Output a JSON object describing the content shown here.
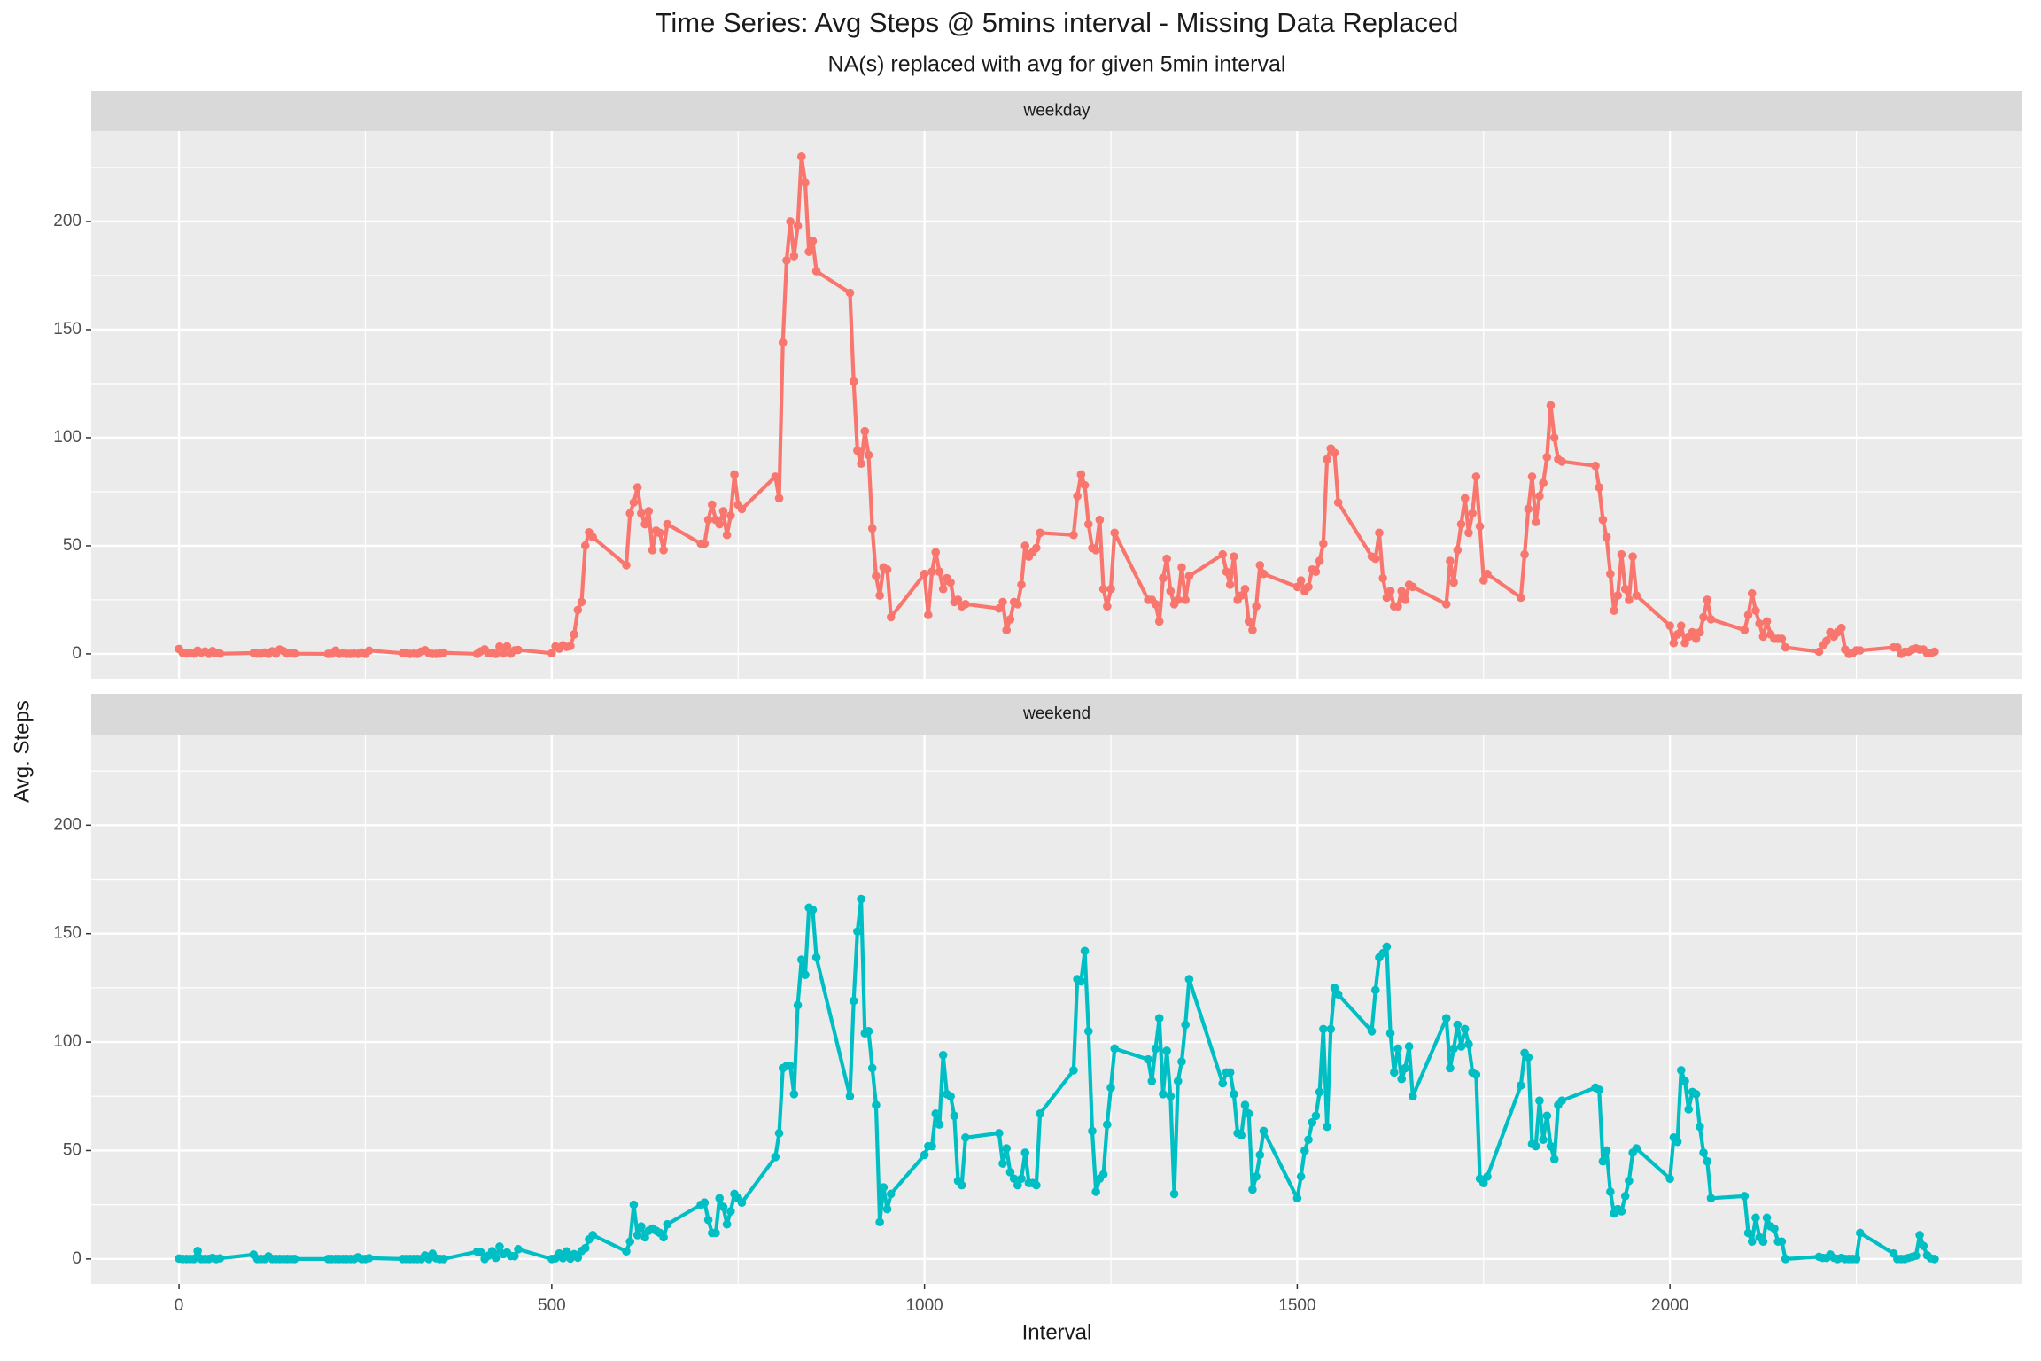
{
  "chart_data": [
    {
      "type": "line",
      "title": "Time Series: Avg Steps @ 5mins interval - Missing Data Replaced",
      "subtitle": "NA(s) replaced with avg for given 5min interval",
      "y_label": "Avg. Steps",
      "strip": "weekday",
      "color": "#F8766D",
      "grid": true,
      "xlim": [
        -117.75,
        2472.75
      ],
      "xticks": [
        0,
        500,
        1000,
        1500,
        2000
      ],
      "xminor": [
        250,
        750,
        1250,
        1750,
        2250
      ],
      "ylim": [
        -11.5,
        241.8
      ],
      "yticks": [
        0,
        50,
        100,
        150,
        200
      ],
      "yminor": [
        25,
        75,
        125,
        175,
        225
      ],
      "x": [
        0,
        5,
        10,
        15,
        20,
        25,
        30,
        35,
        40,
        45,
        50,
        55,
        100,
        105,
        110,
        115,
        120,
        125,
        130,
        135,
        140,
        145,
        150,
        155,
        200,
        205,
        210,
        215,
        220,
        225,
        230,
        235,
        240,
        245,
        250,
        255,
        300,
        305,
        310,
        315,
        320,
        325,
        330,
        335,
        340,
        345,
        350,
        355,
        400,
        405,
        410,
        415,
        420,
        425,
        430,
        435,
        440,
        445,
        450,
        455,
        500,
        505,
        510,
        515,
        520,
        525,
        530,
        535,
        540,
        545,
        550,
        555,
        600,
        605,
        610,
        615,
        620,
        625,
        630,
        635,
        640,
        645,
        650,
        655,
        700,
        705,
        710,
        715,
        720,
        725,
        730,
        735,
        740,
        745,
        750,
        755,
        800,
        805,
        810,
        815,
        820,
        825,
        830,
        835,
        840,
        845,
        850,
        855,
        900,
        905,
        910,
        915,
        920,
        925,
        930,
        935,
        940,
        945,
        950,
        955,
        1000,
        1005,
        1010,
        1015,
        1020,
        1025,
        1030,
        1035,
        1040,
        1045,
        1050,
        1055,
        1100,
        1105,
        1110,
        1115,
        1120,
        1125,
        1130,
        1135,
        1140,
        1145,
        1150,
        1155,
        1200,
        1205,
        1210,
        1215,
        1220,
        1225,
        1230,
        1235,
        1240,
        1245,
        1250,
        1255,
        1300,
        1305,
        1310,
        1315,
        1320,
        1325,
        1330,
        1335,
        1340,
        1345,
        1350,
        1355,
        1400,
        1405,
        1410,
        1415,
        1420,
        1425,
        1430,
        1435,
        1440,
        1445,
        1450,
        1455,
        1500,
        1505,
        1510,
        1515,
        1520,
        1525,
        1530,
        1535,
        1540,
        1545,
        1550,
        1555,
        1600,
        1605,
        1610,
        1615,
        1620,
        1625,
        1630,
        1635,
        1640,
        1645,
        1650,
        1655,
        1700,
        1705,
        1710,
        1715,
        1720,
        1725,
        1730,
        1735,
        1740,
        1745,
        1750,
        1755,
        1800,
        1805,
        1810,
        1815,
        1820,
        1825,
        1830,
        1835,
        1840,
        1845,
        1850,
        1855,
        1900,
        1905,
        1910,
        1915,
        1920,
        1925,
        1930,
        1935,
        1940,
        1945,
        1950,
        1955,
        2000,
        2005,
        2010,
        2015,
        2020,
        2025,
        2030,
        2035,
        2040,
        2045,
        2050,
        2055,
        2100,
        2105,
        2110,
        2115,
        2120,
        2125,
        2130,
        2135,
        2140,
        2145,
        2150,
        2155,
        2200,
        2205,
        2210,
        2215,
        2220,
        2225,
        2230,
        2235,
        2240,
        2245,
        2250,
        2255,
        2300,
        2305,
        2310,
        2315,
        2320,
        2325,
        2330,
        2335,
        2340,
        2345,
        2350,
        2355
      ],
      "values": [
        2.25,
        0.45,
        0.17,
        0.2,
        0.09,
        1.5,
        0.6,
        1.1,
        0,
        1.3,
        0.3,
        0.1,
        0.4,
        0.1,
        0.1,
        0.6,
        0,
        1.2,
        0.1,
        2.0,
        1.3,
        0.2,
        0.3,
        0.1,
        0,
        0.1,
        1.5,
        0,
        0.2,
        0,
        0,
        0.1,
        0,
        0.6,
        0,
        1.5,
        0.3,
        0.2,
        0,
        0.1,
        0,
        1.1,
        1.7,
        0.4,
        0,
        0,
        0.1,
        0.5,
        0,
        1.2,
        2.1,
        0.3,
        0.5,
        0,
        3.4,
        0.2,
        3.5,
        0.1,
        1.6,
        1.8,
        0.3,
        3.5,
        2.4,
        4.0,
        3.2,
        3.6,
        9.0,
        20.3,
        24.0,
        50.1,
        56.2,
        54,
        41,
        65,
        70,
        77,
        65,
        60,
        66,
        48,
        57,
        56,
        48,
        60,
        51,
        51,
        62,
        69,
        62,
        60,
        66,
        55,
        64,
        83,
        69,
        67,
        82,
        72,
        144,
        182,
        200,
        184,
        198,
        230,
        218,
        186,
        191,
        177,
        167,
        126,
        94,
        88,
        103,
        92,
        58,
        36,
        27,
        40,
        39,
        17,
        37,
        18,
        38,
        47,
        38,
        30,
        35,
        33,
        24,
        25,
        22,
        23,
        21,
        24,
        11,
        16,
        24,
        23,
        32,
        50,
        45,
        47,
        49,
        56,
        55,
        73,
        83,
        78,
        60,
        49,
        48,
        62,
        30,
        22,
        30,
        56,
        25,
        25,
        23,
        15,
        35,
        44,
        29,
        23,
        25,
        40,
        25,
        36,
        46,
        38,
        32,
        45,
        25,
        27,
        30,
        15,
        11,
        22,
        41,
        37,
        31,
        34,
        29,
        31,
        39,
        38,
        43,
        51,
        90,
        95,
        93,
        70,
        45,
        44,
        56,
        35,
        26,
        29,
        22,
        22,
        29,
        25,
        32,
        31,
        23,
        43,
        33,
        48,
        60,
        72,
        56,
        65,
        82,
        59,
        34,
        37,
        26,
        46,
        67,
        82,
        61,
        73,
        79,
        91,
        115,
        100,
        90,
        89,
        87,
        77,
        62,
        54,
        37,
        20,
        27,
        46,
        30,
        25,
        45,
        27,
        13,
        5,
        9,
        13,
        5,
        8,
        10,
        7,
        10,
        17,
        25,
        16,
        11,
        18,
        28,
        20,
        14,
        8,
        15,
        9,
        7,
        7,
        7,
        3,
        1,
        4,
        6,
        10,
        8,
        10,
        12,
        2,
        0,
        0.3,
        1.6,
        1.6,
        3,
        3,
        0,
        1,
        1,
        2,
        2.5,
        2,
        2,
        0.3,
        0.3,
        1
      ]
    },
    {
      "type": "line",
      "strip": "weekend",
      "x_label": "Interval",
      "color": "#00BFC4",
      "grid": true,
      "xlim": [
        -117.75,
        2472.75
      ],
      "xticks": [
        0,
        500,
        1000,
        1500,
        2000
      ],
      "xminor": [
        250,
        750,
        1250,
        1750,
        2250
      ],
      "ylim": [
        -11.5,
        241.8
      ],
      "yticks": [
        0,
        50,
        100,
        150,
        200
      ],
      "yminor": [
        25,
        75,
        125,
        175,
        225
      ],
      "x": [
        0,
        5,
        10,
        15,
        20,
        25,
        30,
        35,
        40,
        45,
        50,
        55,
        100,
        105,
        110,
        115,
        120,
        125,
        130,
        135,
        140,
        145,
        150,
        155,
        200,
        205,
        210,
        215,
        220,
        225,
        230,
        235,
        240,
        245,
        250,
        255,
        300,
        305,
        310,
        315,
        320,
        325,
        330,
        335,
        340,
        345,
        350,
        355,
        400,
        405,
        410,
        415,
        420,
        425,
        430,
        435,
        440,
        445,
        450,
        455,
        500,
        505,
        510,
        515,
        520,
        525,
        530,
        535,
        540,
        545,
        550,
        555,
        600,
        605,
        610,
        615,
        620,
        625,
        630,
        635,
        640,
        645,
        650,
        655,
        700,
        705,
        710,
        715,
        720,
        725,
        730,
        735,
        740,
        745,
        750,
        755,
        800,
        805,
        810,
        815,
        820,
        825,
        830,
        835,
        840,
        845,
        850,
        855,
        900,
        905,
        910,
        915,
        920,
        925,
        930,
        935,
        940,
        945,
        950,
        955,
        1000,
        1005,
        1010,
        1015,
        1020,
        1025,
        1030,
        1035,
        1040,
        1045,
        1050,
        1055,
        1100,
        1105,
        1110,
        1115,
        1120,
        1125,
        1130,
        1135,
        1140,
        1145,
        1150,
        1155,
        1200,
        1205,
        1210,
        1215,
        1220,
        1225,
        1230,
        1235,
        1240,
        1245,
        1250,
        1255,
        1300,
        1305,
        1310,
        1315,
        1320,
        1325,
        1330,
        1335,
        1340,
        1345,
        1350,
        1355,
        1400,
        1405,
        1410,
        1415,
        1420,
        1425,
        1430,
        1435,
        1440,
        1445,
        1450,
        1455,
        1500,
        1505,
        1510,
        1515,
        1520,
        1525,
        1530,
        1535,
        1540,
        1545,
        1550,
        1555,
        1600,
        1605,
        1610,
        1615,
        1620,
        1625,
        1630,
        1635,
        1640,
        1645,
        1650,
        1655,
        1700,
        1705,
        1710,
        1715,
        1720,
        1725,
        1730,
        1735,
        1740,
        1745,
        1750,
        1755,
        1800,
        1805,
        1810,
        1815,
        1820,
        1825,
        1830,
        1835,
        1840,
        1845,
        1850,
        1855,
        1900,
        1905,
        1910,
        1915,
        1920,
        1925,
        1930,
        1935,
        1940,
        1945,
        1950,
        1955,
        2000,
        2005,
        2010,
        2015,
        2020,
        2025,
        2030,
        2035,
        2040,
        2045,
        2050,
        2055,
        2100,
        2105,
        2110,
        2115,
        2120,
        2125,
        2130,
        2135,
        2140,
        2145,
        2150,
        2155,
        2200,
        2205,
        2210,
        2215,
        2220,
        2225,
        2230,
        2235,
        2240,
        2245,
        2250,
        2255,
        2300,
        2305,
        2310,
        2315,
        2320,
        2325,
        2330,
        2335,
        2340,
        2345,
        2350,
        2355
      ],
      "values": [
        0.2,
        0,
        0,
        0,
        0,
        3.7,
        0,
        0,
        0,
        0.5,
        0,
        0.3,
        2.0,
        0,
        0,
        0,
        1.2,
        0,
        0,
        0,
        0,
        0,
        0,
        0,
        0,
        0,
        0,
        0,
        0,
        0,
        0,
        0,
        0.8,
        0,
        0,
        0.4,
        0,
        0,
        0,
        0,
        0,
        0,
        1.6,
        0,
        2.4,
        0.3,
        0,
        0,
        3.4,
        3.0,
        0,
        1.5,
        3.6,
        0.5,
        5.7,
        2.2,
        3.0,
        1.4,
        1.3,
        4.5,
        0,
        0.3,
        2.5,
        0.4,
        3.5,
        0.2,
        2.2,
        0.6,
        3.7,
        5,
        9,
        11,
        3.5,
        8,
        25,
        11,
        15,
        10,
        13,
        14,
        13,
        12,
        10,
        16,
        25,
        26,
        18,
        12,
        12,
        28,
        24,
        16,
        22,
        30,
        28,
        26,
        47,
        58,
        88,
        89,
        89,
        76,
        117,
        138,
        131,
        162,
        161,
        139,
        75,
        119,
        151,
        166,
        104,
        105,
        88,
        71,
        17,
        33,
        23,
        30,
        48,
        52,
        52,
        67,
        62,
        94,
        76,
        75,
        66,
        36,
        34,
        56,
        58,
        44,
        51,
        40,
        37,
        34,
        37,
        49,
        35,
        35,
        34,
        67,
        87,
        129,
        128,
        142,
        105,
        59,
        31,
        37,
        39,
        62,
        79,
        97,
        92,
        82,
        97,
        111,
        76,
        96,
        75,
        30,
        82,
        91,
        108,
        129,
        81,
        86,
        86,
        76,
        58,
        57,
        71,
        67,
        32,
        38,
        48,
        59,
        28,
        38,
        50,
        55,
        63,
        66,
        77,
        106,
        61,
        106,
        125,
        122,
        105,
        124,
        139,
        141,
        144,
        104,
        86,
        97,
        83,
        88,
        98,
        75,
        111,
        88,
        97,
        108,
        98,
        106,
        99,
        86,
        85,
        37,
        35,
        38,
        80,
        95,
        93,
        53,
        52,
        73,
        55,
        66,
        52,
        46,
        71,
        73,
        79,
        78,
        45,
        50,
        31,
        21,
        23,
        22,
        29,
        36,
        49,
        51,
        37,
        56,
        54,
        87,
        82,
        69,
        77,
        76,
        61,
        49,
        45,
        28,
        29,
        12,
        8,
        19,
        10,
        8,
        19,
        15,
        14,
        8,
        8,
        0,
        1,
        0.5,
        0.5,
        2,
        0.5,
        0,
        0.5,
        0,
        0,
        0,
        0,
        12,
        2.5,
        0,
        0,
        0,
        0.5,
        1,
        1.5,
        11,
        6,
        1.7,
        0.3,
        0
      ]
    }
  ]
}
